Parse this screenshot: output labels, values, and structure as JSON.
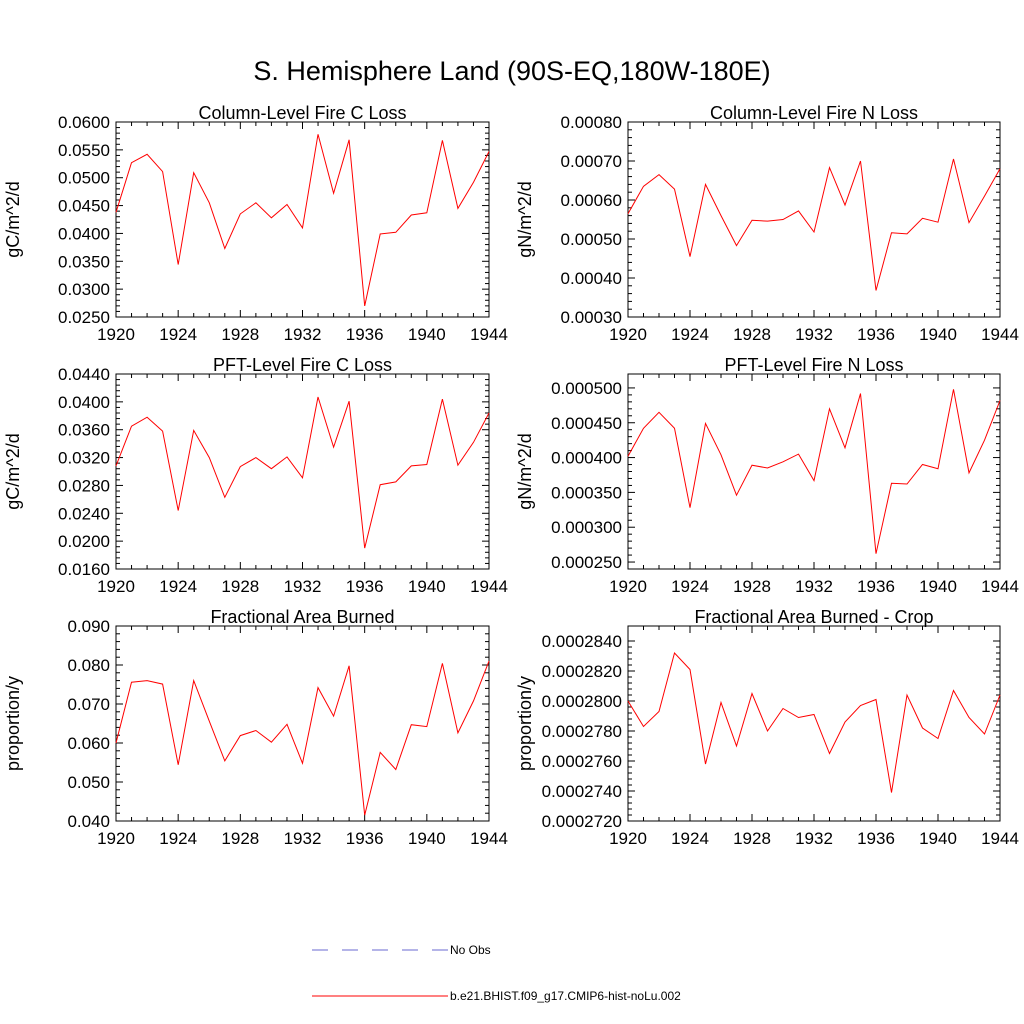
{
  "title": "S. Hemisphere Land (90S-EQ,180W-180E)",
  "legend": {
    "entries": [
      {
        "label": "No Obs",
        "color": "#6a6ad0",
        "dash": true
      },
      {
        "label": "b.e21.BHIST.f09_g17.CMIP6-hist-noLu.002",
        "color": "#ff0000",
        "dash": false
      }
    ]
  },
  "chart_data": [
    {
      "type": "line",
      "title": "Column-Level Fire C Loss",
      "ylabel": "gC/m^2/d",
      "xlim": [
        1920,
        1944
      ],
      "ylim": [
        0.025,
        0.06
      ],
      "xticks": [
        "1920",
        "1924",
        "1928",
        "1932",
        "1936",
        "1940",
        "1944"
      ],
      "yticks": [
        "0.0250",
        "0.0300",
        "0.0350",
        "0.0400",
        "0.0450",
        "0.0500",
        "0.0550",
        "0.0600"
      ],
      "x": [
        1920,
        1921,
        1922,
        1923,
        1924,
        1925,
        1926,
        1927,
        1928,
        1929,
        1930,
        1931,
        1932,
        1933,
        1934,
        1935,
        1936,
        1937,
        1938,
        1939,
        1940,
        1941,
        1942,
        1943,
        1944
      ],
      "series": [
        {
          "name": "b.e21.BHIST.f09_g17.CMIP6-hist-noLu.002",
          "color": "#ff0000",
          "values": [
            0.0438,
            0.0527,
            0.0542,
            0.0511,
            0.0344,
            0.0509,
            0.0455,
            0.0373,
            0.0435,
            0.0455,
            0.0428,
            0.0452,
            0.041,
            0.0578,
            0.0472,
            0.0568,
            0.027,
            0.0399,
            0.0402,
            0.0433,
            0.0437,
            0.0567,
            0.0445,
            0.0492,
            0.0547
          ]
        }
      ]
    },
    {
      "type": "line",
      "title": "Column-Level Fire N Loss",
      "ylabel": "gN/m^2/d",
      "xlim": [
        1920,
        1944
      ],
      "ylim": [
        0.0003,
        0.0008
      ],
      "xticks": [
        "1920",
        "1924",
        "1928",
        "1932",
        "1936",
        "1940",
        "1944"
      ],
      "yticks": [
        "0.00030",
        "0.00040",
        "0.00050",
        "0.00060",
        "0.00070",
        "0.00080"
      ],
      "x": [
        1920,
        1921,
        1922,
        1923,
        1924,
        1925,
        1926,
        1927,
        1928,
        1929,
        1930,
        1931,
        1932,
        1933,
        1934,
        1935,
        1936,
        1937,
        1938,
        1939,
        1940,
        1941,
        1942,
        1943,
        1944
      ],
      "series": [
        {
          "name": "b.e21.BHIST.f09_g17.CMIP6-hist-noLu.002",
          "color": "#ff0000",
          "values": [
            0.000565,
            0.000635,
            0.000665,
            0.000628,
            0.000455,
            0.00064,
            0.00056,
            0.000483,
            0.000548,
            0.000546,
            0.00055,
            0.000572,
            0.000518,
            0.000683,
            0.000587,
            0.0007,
            0.000368,
            0.000516,
            0.000513,
            0.000553,
            0.000543,
            0.000705,
            0.000542,
            0.00061,
            0.00068
          ]
        }
      ]
    },
    {
      "type": "line",
      "title": "PFT-Level Fire C Loss",
      "ylabel": "gC/m^2/d",
      "xlim": [
        1920,
        1944
      ],
      "ylim": [
        0.016,
        0.044
      ],
      "xticks": [
        "1920",
        "1924",
        "1928",
        "1932",
        "1936",
        "1940",
        "1944"
      ],
      "yticks": [
        "0.0160",
        "0.0200",
        "0.0240",
        "0.0280",
        "0.0320",
        "0.0360",
        "0.0400",
        "0.0440"
      ],
      "x": [
        1920,
        1921,
        1922,
        1923,
        1924,
        1925,
        1926,
        1927,
        1928,
        1929,
        1930,
        1931,
        1932,
        1933,
        1934,
        1935,
        1936,
        1937,
        1938,
        1939,
        1940,
        1941,
        1942,
        1943,
        1944
      ],
      "series": [
        {
          "name": "b.e21.BHIST.f09_g17.CMIP6-hist-noLu.002",
          "color": "#ff0000",
          "values": [
            0.0308,
            0.0365,
            0.0378,
            0.0358,
            0.0244,
            0.0359,
            0.032,
            0.0263,
            0.0307,
            0.032,
            0.0304,
            0.0321,
            0.0291,
            0.0407,
            0.0335,
            0.0401,
            0.019,
            0.0281,
            0.0285,
            0.0308,
            0.031,
            0.0404,
            0.0309,
            0.0342,
            0.0384
          ]
        }
      ]
    },
    {
      "type": "line",
      "title": "PFT-Level Fire N Loss",
      "ylabel": "gN/m^2/d",
      "xlim": [
        1920,
        1944
      ],
      "ylim": [
        0.00024,
        0.00052
      ],
      "xticks": [
        "1920",
        "1924",
        "1928",
        "1932",
        "1936",
        "1940",
        "1944"
      ],
      "yticks": [
        "0.000250",
        "0.000300",
        "0.000350",
        "0.000400",
        "0.000450",
        "0.000500"
      ],
      "x": [
        1920,
        1921,
        1922,
        1923,
        1924,
        1925,
        1926,
        1927,
        1928,
        1929,
        1930,
        1931,
        1932,
        1933,
        1934,
        1935,
        1936,
        1937,
        1938,
        1939,
        1940,
        1941,
        1942,
        1943,
        1944
      ],
      "series": [
        {
          "name": "b.e21.BHIST.f09_g17.CMIP6-hist-noLu.002",
          "color": "#ff0000",
          "values": [
            0.000402,
            0.000442,
            0.000465,
            0.000442,
            0.000328,
            0.000449,
            0.000404,
            0.000346,
            0.000389,
            0.000385,
            0.000394,
            0.000405,
            0.000367,
            0.00047,
            0.000414,
            0.000492,
            0.000262,
            0.000363,
            0.000362,
            0.00039,
            0.000384,
            0.000498,
            0.000378,
            0.000425,
            0.000482
          ]
        }
      ]
    },
    {
      "type": "line",
      "title": "Fractional Area Burned",
      "ylabel": "proportion/y",
      "xlim": [
        1920,
        1944
      ],
      "ylim": [
        0.04,
        0.09
      ],
      "xticks": [
        "1920",
        "1924",
        "1928",
        "1932",
        "1936",
        "1940",
        "1944"
      ],
      "yticks": [
        "0.040",
        "0.050",
        "0.060",
        "0.070",
        "0.080",
        "0.090"
      ],
      "x": [
        1920,
        1921,
        1922,
        1923,
        1924,
        1925,
        1926,
        1927,
        1928,
        1929,
        1930,
        1931,
        1932,
        1933,
        1934,
        1935,
        1936,
        1937,
        1938,
        1939,
        1940,
        1941,
        1942,
        1943,
        1944
      ],
      "series": [
        {
          "name": "b.e21.BHIST.f09_g17.CMIP6-hist-noLu.002",
          "color": "#ff0000",
          "values": [
            0.06,
            0.0756,
            0.076,
            0.0751,
            0.0544,
            0.076,
            0.0656,
            0.0554,
            0.0619,
            0.0632,
            0.0602,
            0.0648,
            0.0548,
            0.0742,
            0.0669,
            0.0798,
            0.0415,
            0.0576,
            0.0532,
            0.0647,
            0.0642,
            0.0804,
            0.0626,
            0.0708,
            0.081
          ]
        }
      ]
    },
    {
      "type": "line",
      "title": "Fractional Area Burned - Crop",
      "ylabel": "proportion/y",
      "xlim": [
        1920,
        1944
      ],
      "ylim": [
        0.000272,
        0.000285
      ],
      "xticks": [
        "1920",
        "1924",
        "1928",
        "1932",
        "1936",
        "1940",
        "1944"
      ],
      "yticks": [
        "0.0002720",
        "0.0002740",
        "0.0002760",
        "0.0002780",
        "0.0002800",
        "0.0002820",
        "0.0002840"
      ],
      "x": [
        1920,
        1921,
        1922,
        1923,
        1924,
        1925,
        1926,
        1927,
        1928,
        1929,
        1930,
        1931,
        1932,
        1933,
        1934,
        1935,
        1936,
        1937,
        1938,
        1939,
        1940,
        1941,
        1942,
        1943,
        1944
      ],
      "series": [
        {
          "name": "b.e21.BHIST.f09_g17.CMIP6-hist-noLu.002",
          "color": "#ff0000",
          "values": [
            0.00028,
            0.0002783,
            0.0002793,
            0.0002832,
            0.0002821,
            0.0002758,
            0.0002799,
            0.000277,
            0.0002805,
            0.000278,
            0.0002795,
            0.0002789,
            0.0002791,
            0.0002765,
            0.0002786,
            0.0002797,
            0.0002801,
            0.0002739,
            0.0002804,
            0.0002782,
            0.0002775,
            0.0002807,
            0.0002789,
            0.0002778,
            0.0002804
          ]
        }
      ]
    }
  ]
}
